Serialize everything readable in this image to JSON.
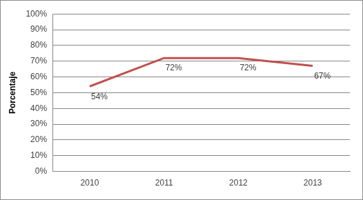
{
  "chart_data": {
    "type": "line",
    "y_label": "Porcentaje",
    "categories": [
      "2010",
      "2011",
      "2012",
      "2013"
    ],
    "values": [
      54,
      72,
      72,
      67
    ],
    "value_labels": [
      "54%",
      "72%",
      "72%",
      "67%"
    ],
    "data_labels": true,
    "color": "#c0504d",
    "ylim": [
      0,
      100
    ],
    "yticks": [
      {
        "value": 0,
        "label": "0%"
      },
      {
        "value": 10,
        "label": "10%"
      },
      {
        "value": 20,
        "label": "20%"
      },
      {
        "value": 30,
        "label": "30%"
      },
      {
        "value": 40,
        "label": "40%"
      },
      {
        "value": 50,
        "label": "50%"
      },
      {
        "value": 60,
        "label": "60%"
      },
      {
        "value": 70,
        "label": "70%"
      },
      {
        "value": 80,
        "label": "80%"
      },
      {
        "value": 90,
        "label": "90%"
      },
      {
        "value": 100,
        "label": "100%"
      }
    ],
    "grid": true
  }
}
